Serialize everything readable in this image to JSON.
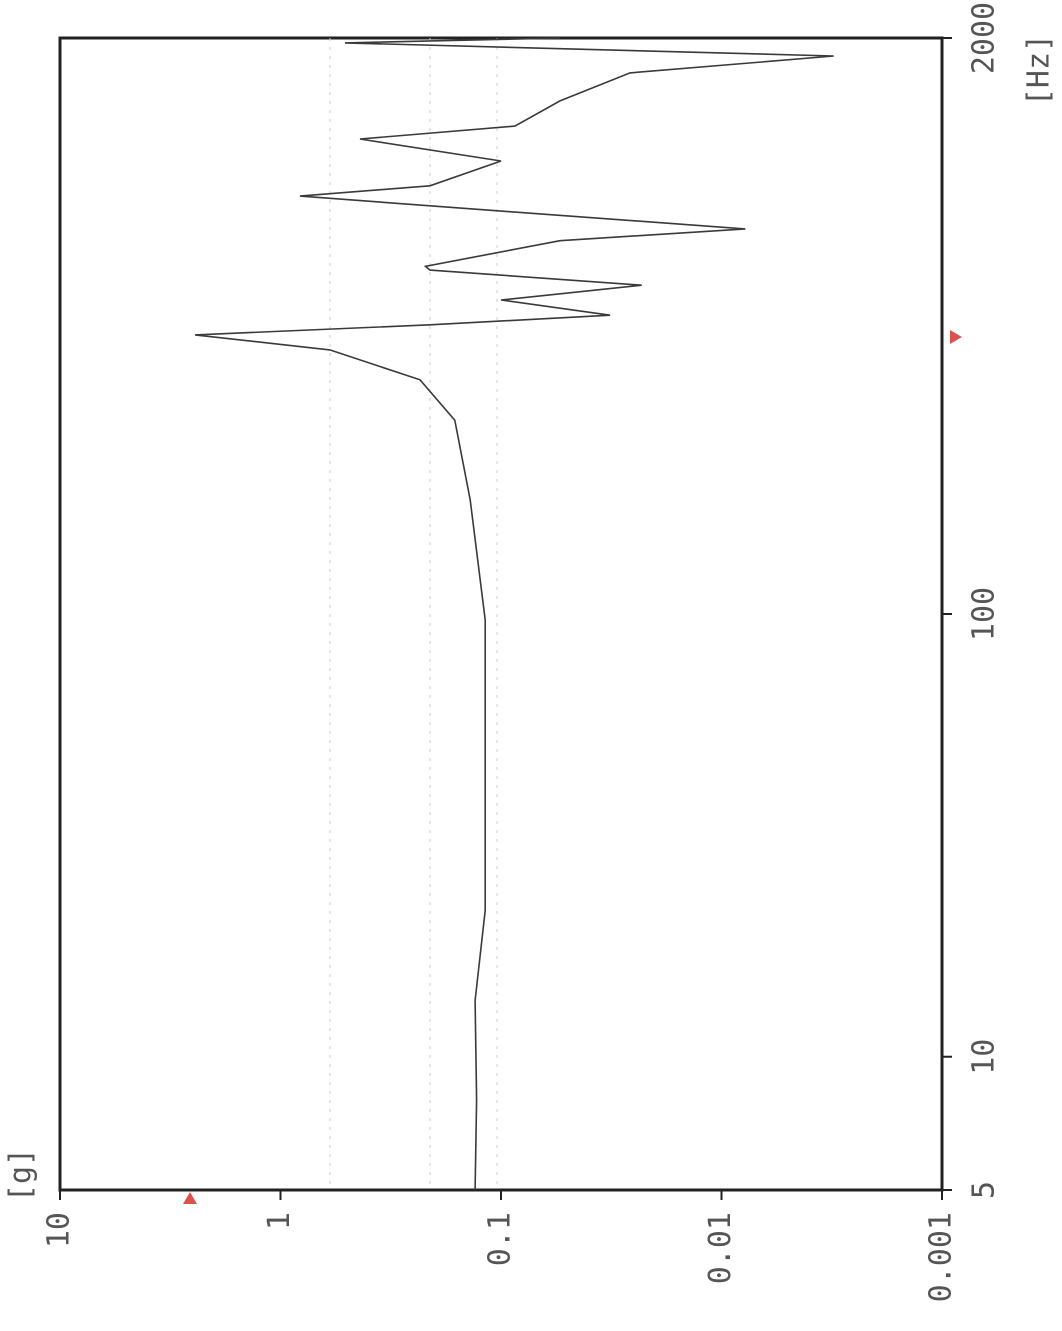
{
  "chart_data": {
    "type": "line",
    "x_label": "[Hz]",
    "y_label": "[g]",
    "x": [
      5,
      8,
      13.4,
      21.4,
      38,
      64,
      97,
      181,
      274,
      338,
      395,
      427,
      450,
      473,
      512,
      553,
      598,
      610,
      697,
      741,
      813,
      879,
      927,
      1055,
      1183,
      1265,
      1442,
      1668,
      1821,
      1950,
      2000
    ],
    "series": [
      {
        "name": "response",
        "color": "#3a3a3a",
        "values": [
          0.131,
          0.129,
          0.131,
          0.118,
          0.118,
          0.118,
          0.118,
          0.138,
          0.162,
          0.233,
          0.597,
          2.44,
          0.21,
          0.032,
          0.1,
          0.023,
          0.21,
          0.22,
          0.054,
          0.0078,
          0.1,
          0.817,
          0.21,
          0.1,
          0.436,
          0.0865,
          0.054,
          0.026,
          0.0031,
          0.51,
          0.054
        ]
      }
    ],
    "xlim": [
      5,
      2000
    ],
    "xticks": [
      5,
      10,
      100,
      2000
    ],
    "ylim": [
      0.001,
      10
    ],
    "yticks": [
      10,
      1,
      0.1,
      0.01,
      0.001
    ],
    "xscale": "log",
    "yscale": "log"
  }
}
